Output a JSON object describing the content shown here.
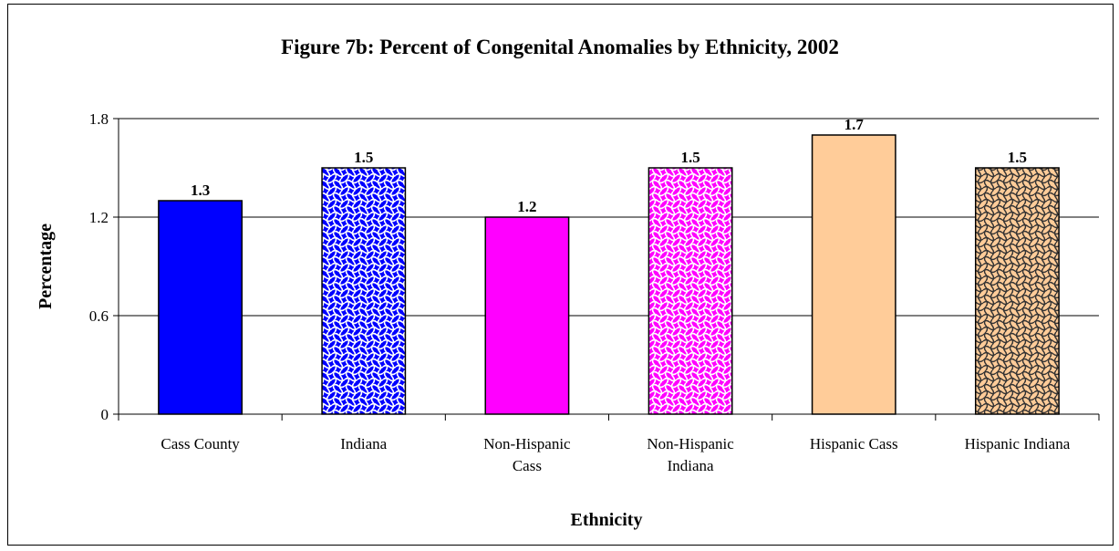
{
  "chart_data": {
    "type": "bar",
    "title": "Figure 7b: Percent of Congenital Anomalies by Ethnicity, 2002",
    "xlabel": "Ethnicity",
    "ylabel": "Percentage",
    "categories": [
      [
        "Cass County"
      ],
      [
        "Indiana"
      ],
      [
        "Non-Hispanic",
        "Cass"
      ],
      [
        "Non-Hispanic",
        "Indiana"
      ],
      [
        "Hispanic Cass"
      ],
      [
        "Hispanic Indiana"
      ]
    ],
    "values": [
      1.3,
      1.5,
      1.2,
      1.5,
      1.7,
      1.5
    ],
    "value_labels": [
      "1.3",
      "1.5",
      "1.2",
      "1.5",
      "1.7",
      "1.5"
    ],
    "ylim": [
      0,
      1.8
    ],
    "yticks": [
      0,
      0.6,
      1.2,
      1.8
    ],
    "ytick_labels": [
      "0",
      "0.6",
      "1.2",
      "1.8"
    ],
    "grid": true,
    "legend": "none",
    "bar_styles": [
      {
        "fill": "#0000ff",
        "pattern": "solid"
      },
      {
        "fill": "#0000ff",
        "pattern": "wave-white"
      },
      {
        "fill": "#ff00ff",
        "pattern": "solid"
      },
      {
        "fill": "#ff00ff",
        "pattern": "wave-white"
      },
      {
        "fill": "#ffcc99",
        "pattern": "solid"
      },
      {
        "fill": "#ffcc99",
        "pattern": "wave-dark"
      }
    ]
  }
}
